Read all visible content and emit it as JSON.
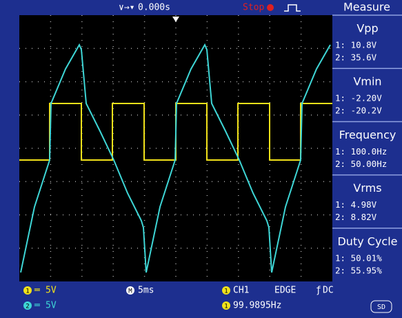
{
  "top_bar": {
    "trigger_position": "0.000s",
    "status": "Stop",
    "menu": "Measure"
  },
  "measurements": [
    {
      "label": "Vpp",
      "ch1": "1: 10.8V",
      "ch2": "2: 35.6V"
    },
    {
      "label": "Vmin",
      "ch1": "1: -2.20V",
      "ch2": "2: -20.2V"
    },
    {
      "label": "Frequency",
      "ch1": "1: 100.0Hz",
      "ch2": "2: 50.00Hz"
    },
    {
      "label": "Vrms",
      "ch1": "1: 4.98V",
      "ch2": "2: 8.82V"
    },
    {
      "label": "Duty Cycle",
      "ch1": "1: 50.01%",
      "ch2": "2: 55.95%"
    }
  ],
  "bottom_bar": {
    "ch1_badge": "1",
    "ch1_scale": "5V",
    "ch2_badge": "2",
    "ch2_scale": "5V",
    "timebase_badge": "M",
    "timebase": "5ms",
    "trigger_badge": "1",
    "trigger_source": "CH1",
    "trigger_type": "EDGE",
    "coupling": "DC",
    "frequency_badge": "1",
    "frequency": "99.9895Hz",
    "storage": "SD"
  }
}
